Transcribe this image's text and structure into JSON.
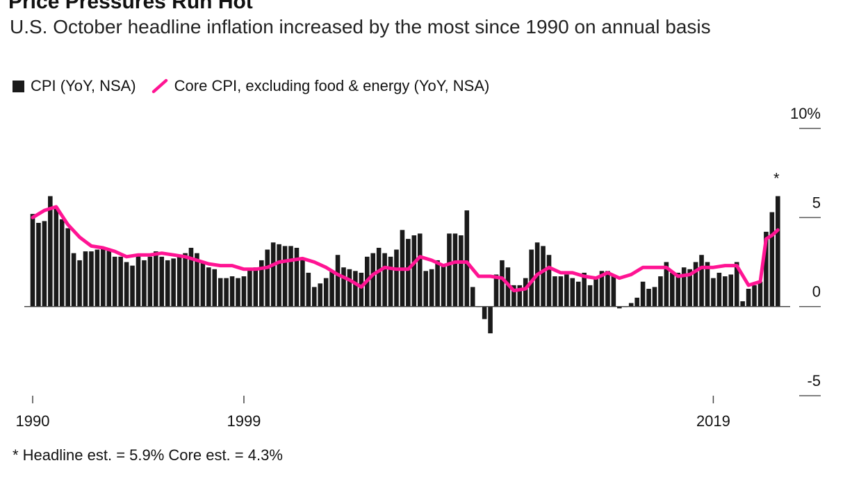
{
  "chart_data": {
    "type": "bar+line",
    "title": "Price Pressures Run Hot",
    "subtitle": "U.S. October headline inflation increased by the most since 1990 on annual basis",
    "x_unit": "year",
    "x_range": [
      1990,
      2021.83
    ],
    "ylim": [
      -5,
      10
    ],
    "yticks": [
      {
        "value": 10,
        "label": "10%"
      },
      {
        "value": 5,
        "label": "5"
      },
      {
        "value": 0,
        "label": "0"
      },
      {
        "value": -5,
        "label": "-5"
      }
    ],
    "xticks": [
      {
        "value": 1990,
        "label": "1990"
      },
      {
        "value": 1999,
        "label": "1999"
      },
      {
        "value": 2019,
        "label": "2019"
      }
    ],
    "legend_position": "top-left",
    "series": [
      {
        "name": "CPI (YoY, NSA)",
        "kind": "bar",
        "color": "#1a1a1a",
        "x": [
          1990.0,
          1990.25,
          1990.5,
          1990.75,
          1991.0,
          1991.25,
          1991.5,
          1991.75,
          1992.0,
          1992.25,
          1992.5,
          1992.75,
          1993.0,
          1993.25,
          1993.5,
          1993.75,
          1994.0,
          1994.25,
          1994.5,
          1994.75,
          1995.0,
          1995.25,
          1995.5,
          1995.75,
          1996.0,
          1996.25,
          1996.5,
          1996.75,
          1997.0,
          1997.25,
          1997.5,
          1997.75,
          1998.0,
          1998.25,
          1998.5,
          1998.75,
          1999.0,
          1999.25,
          1999.5,
          1999.75,
          2000.0,
          2000.25,
          2000.5,
          2000.75,
          2001.0,
          2001.25,
          2001.5,
          2001.75,
          2002.0,
          2002.25,
          2002.5,
          2002.75,
          2003.0,
          2003.25,
          2003.5,
          2003.75,
          2004.0,
          2004.25,
          2004.5,
          2004.75,
          2005.0,
          2005.25,
          2005.5,
          2005.75,
          2006.0,
          2006.25,
          2006.5,
          2006.75,
          2007.0,
          2007.25,
          2007.5,
          2007.75,
          2008.0,
          2008.25,
          2008.5,
          2008.75,
          2009.0,
          2009.25,
          2009.5,
          2009.75,
          2010.0,
          2010.25,
          2010.5,
          2010.75,
          2011.0,
          2011.25,
          2011.5,
          2011.75,
          2012.0,
          2012.25,
          2012.5,
          2012.75,
          2013.0,
          2013.25,
          2013.5,
          2013.75,
          2014.0,
          2014.25,
          2014.5,
          2014.75,
          2015.0,
          2015.25,
          2015.5,
          2015.75,
          2016.0,
          2016.25,
          2016.5,
          2016.75,
          2017.0,
          2017.25,
          2017.5,
          2017.75,
          2018.0,
          2018.25,
          2018.5,
          2018.75,
          2019.0,
          2019.25,
          2019.5,
          2019.75,
          2020.0,
          2020.25,
          2020.5,
          2020.75,
          2021.0,
          2021.25,
          2021.5,
          2021.75
        ],
        "values": [
          5.2,
          4.7,
          4.8,
          6.2,
          5.6,
          4.9,
          4.4,
          3.0,
          2.6,
          3.1,
          3.1,
          3.2,
          3.3,
          3.2,
          2.8,
          2.8,
          2.5,
          2.3,
          2.9,
          2.6,
          2.8,
          3.1,
          2.8,
          2.6,
          2.7,
          2.9,
          3.0,
          3.3,
          3.0,
          2.5,
          2.2,
          2.1,
          1.6,
          1.6,
          1.7,
          1.6,
          1.7,
          2.1,
          2.2,
          2.6,
          3.2,
          3.6,
          3.5,
          3.4,
          3.4,
          3.3,
          2.7,
          1.9,
          1.1,
          1.3,
          1.6,
          2.0,
          2.9,
          2.2,
          2.1,
          2.0,
          1.9,
          2.8,
          3.0,
          3.3,
          3.0,
          2.8,
          3.2,
          4.3,
          3.8,
          4.0,
          4.1,
          2.0,
          2.1,
          2.6,
          2.4,
          4.1,
          4.1,
          4.0,
          5.4,
          1.1,
          0.0,
          -0.7,
          -1.5,
          1.8,
          2.6,
          2.2,
          1.2,
          1.2,
          1.6,
          3.2,
          3.6,
          3.4,
          2.9,
          1.7,
          1.7,
          1.8,
          1.6,
          1.4,
          1.9,
          1.2,
          1.6,
          2.0,
          2.0,
          1.7,
          -0.1,
          0.0,
          0.2,
          0.5,
          1.4,
          1.0,
          1.1,
          1.7,
          2.5,
          1.9,
          1.9,
          2.2,
          2.1,
          2.5,
          2.9,
          2.5,
          1.6,
          1.9,
          1.7,
          1.8,
          2.5,
          0.3,
          1.0,
          1.2,
          1.4,
          4.2,
          5.3,
          6.2
        ]
      },
      {
        "name": "Core CPI, excluding food & energy (YoY, NSA)",
        "kind": "line",
        "color": "#ff1493",
        "x": [
          1990.0,
          1990.5,
          1991.0,
          1991.5,
          1992.0,
          1992.5,
          1993.0,
          1993.5,
          1994.0,
          1994.5,
          1995.0,
          1995.5,
          1996.0,
          1996.5,
          1997.0,
          1997.5,
          1998.0,
          1998.5,
          1999.0,
          1999.5,
          2000.0,
          2000.5,
          2001.0,
          2001.5,
          2002.0,
          2002.5,
          2003.0,
          2003.5,
          2004.0,
          2004.5,
          2005.0,
          2005.5,
          2006.0,
          2006.5,
          2007.0,
          2007.5,
          2008.0,
          2008.5,
          2009.0,
          2009.5,
          2010.0,
          2010.5,
          2011.0,
          2011.5,
          2012.0,
          2012.5,
          2013.0,
          2013.5,
          2014.0,
          2014.5,
          2015.0,
          2015.5,
          2016.0,
          2016.5,
          2017.0,
          2017.5,
          2018.0,
          2018.5,
          2019.0,
          2019.5,
          2020.0,
          2020.5,
          2021.0,
          2021.25,
          2021.5,
          2021.75
        ],
        "values": [
          5.0,
          5.4,
          5.6,
          4.6,
          3.9,
          3.4,
          3.3,
          3.1,
          2.8,
          2.9,
          2.9,
          3.0,
          2.9,
          2.8,
          2.6,
          2.4,
          2.3,
          2.3,
          2.1,
          2.1,
          2.2,
          2.5,
          2.6,
          2.7,
          2.5,
          2.2,
          1.8,
          1.5,
          1.1,
          1.8,
          2.2,
          2.1,
          2.1,
          2.8,
          2.6,
          2.3,
          2.5,
          2.5,
          1.7,
          1.7,
          1.6,
          0.9,
          1.0,
          1.8,
          2.2,
          1.9,
          1.9,
          1.7,
          1.6,
          1.9,
          1.6,
          1.8,
          2.2,
          2.2,
          2.2,
          1.7,
          1.8,
          2.2,
          2.2,
          2.3,
          2.3,
          1.2,
          1.4,
          3.8,
          4.0,
          4.3
        ]
      }
    ],
    "annotations": [
      {
        "x": 2021.75,
        "y": 7.3,
        "text": "*"
      }
    ],
    "footnote": "* Headline est. = 5.9% Core est. = 4.3%"
  }
}
